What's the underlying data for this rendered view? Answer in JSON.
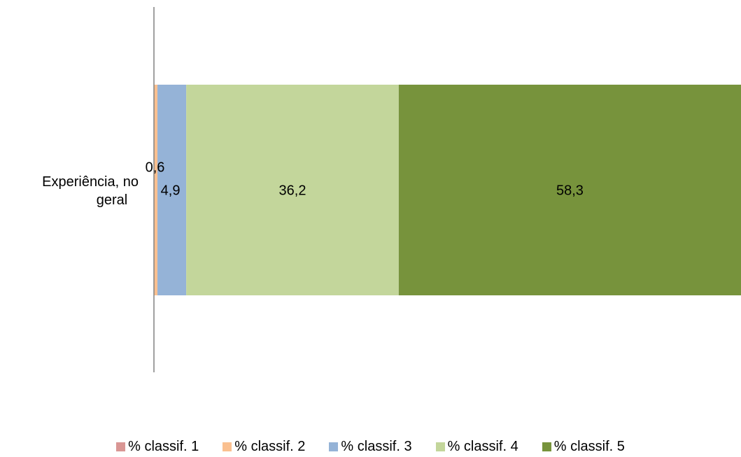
{
  "chart_data": {
    "type": "bar",
    "orientation": "horizontal",
    "stacked": true,
    "categories": [
      "Experiência, no geral"
    ],
    "category_label_lines": [
      "Experiência, no",
      "geral"
    ],
    "xlim": [
      0,
      100
    ],
    "grid": false,
    "legend_position": "bottom",
    "series": [
      {
        "name": "% classif. 1",
        "values": [
          0.0
        ],
        "label": "",
        "color": "#d99694"
      },
      {
        "name": "% classif. 2",
        "values": [
          0.6
        ],
        "label": "0,6",
        "color": "#fac090"
      },
      {
        "name": "% classif. 3",
        "values": [
          4.9
        ],
        "label": "4,9",
        "color": "#95b3d7"
      },
      {
        "name": "% classif. 4",
        "values": [
          36.2
        ],
        "label": "36,2",
        "color": "#c3d69b"
      },
      {
        "name": "% classif. 5",
        "values": [
          58.3
        ],
        "label": "58,3",
        "color": "#77933c"
      }
    ],
    "axis_color": "#808080"
  }
}
